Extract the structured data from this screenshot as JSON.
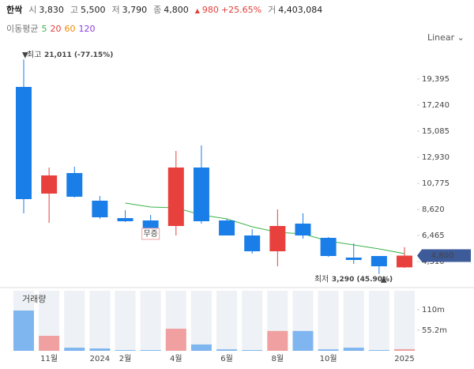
{
  "header": {
    "name": "한싹",
    "fields": [
      {
        "label": "시",
        "value": "3,830"
      },
      {
        "label": "고",
        "value": "5,500"
      },
      {
        "label": "저",
        "value": "3,790"
      },
      {
        "label": "종",
        "value": "4,800"
      }
    ],
    "change": "980",
    "change_pct": "+25.65%",
    "volume_label": "거",
    "volume": "4,403,084"
  },
  "chart_data": {
    "type": "candlestick",
    "scale_label": "Linear",
    "ma_title": "이동평균",
    "categories": [
      null,
      "11월",
      null,
      "2024",
      "2월",
      null,
      "4월",
      null,
      "6월",
      null,
      "8월",
      null,
      "10월",
      null,
      null,
      "2025"
    ],
    "ohlc": {
      "open": [
        18742,
        9926,
        11624,
        9339,
        7902,
        7706,
        7249,
        12081,
        7706,
        6465,
        5159,
        7445,
        6270,
        4637,
        4768,
        3830
      ],
      "high": [
        21011,
        12081,
        12147,
        9731,
        8555,
        8164,
        13453,
        13910,
        7837,
        6988,
        8620,
        8294,
        6335,
        5812,
        4768,
        5500
      ],
      "low": [
        8294,
        7510,
        9600,
        7837,
        7576,
        7053,
        6465,
        7445,
        6465,
        4964,
        3919,
        6204,
        4703,
        4115,
        3290,
        3790
      ],
      "close": [
        9469,
        11428,
        9665,
        7968,
        7641,
        7053,
        12081,
        7641,
        6465,
        5159,
        7249,
        6465,
        4768,
        4441,
        3919,
        4800
      ]
    },
    "up_color": "#e8403c",
    "down_color": "#1a7ee8",
    "moving_averages": [
      {
        "name": "5",
        "color": "#3cb44b",
        "values": [
          null,
          null,
          null,
          null,
          9143,
          8817,
          8751,
          8164,
          7837,
          7184,
          6727,
          6596,
          6008,
          5682,
          5355,
          4964
        ]
      },
      {
        "name": "20",
        "color": "#e0403a"
      },
      {
        "name": "60",
        "color": "#f08c00"
      },
      {
        "name": "120",
        "color": "#8a3ee0"
      }
    ],
    "ylim": [
      3070,
      22007
    ],
    "yticks": [
      {
        "value": 19395,
        "label": "19,395"
      },
      {
        "value": 17240,
        "label": "17,240"
      },
      {
        "value": 15085,
        "label": "15,085"
      },
      {
        "value": 12930,
        "label": "12,930"
      },
      {
        "value": 10775,
        "label": "10,775"
      },
      {
        "value": 8620,
        "label": "8,620"
      },
      {
        "value": 6465,
        "label": "6,465"
      },
      {
        "value": 4310,
        "label": "4,310"
      }
    ],
    "last_price": {
      "value": 4800,
      "label": "4,800",
      "color": "#3d5a99"
    },
    "annotations": [
      {
        "label": "최고",
        "text": "21,011 (-77.15%)",
        "index": 0,
        "value": 21011
      },
      {
        "label": "최저",
        "text": "3,290 (45.90%)",
        "index": 14,
        "value": 3290
      },
      {
        "text": "무증",
        "index": 5
      }
    ],
    "volume": {
      "title": "거래량",
      "values": [
        107.5,
        40,
        8.4,
        6.3,
        2,
        2,
        59,
        17,
        4,
        2,
        53,
        53,
        4,
        8.4,
        2,
        4.4
      ],
      "up_color": "#f0a0a0",
      "down_color": "#80b6f0",
      "ylim": [
        0,
        156
      ],
      "yticks": [
        {
          "value": 110,
          "label": "110m"
        },
        {
          "value": 55.2,
          "label": "55.2m"
        }
      ]
    }
  }
}
